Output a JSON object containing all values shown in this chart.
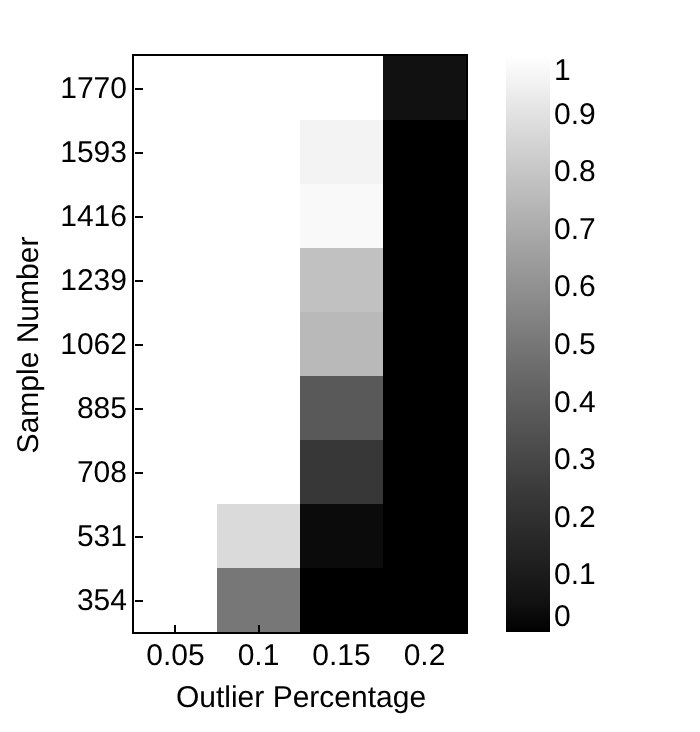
{
  "chart_data": {
    "type": "heatmap",
    "xlabel": "Outlier Percentage",
    "ylabel": "Sample Number",
    "categories": [
      "0.05",
      "0.1",
      "0.15",
      "0.2"
    ],
    "y_categories": [
      "1770",
      "1593",
      "1416",
      "1239",
      "1062",
      "885",
      "708",
      "531",
      "354"
    ],
    "cells": [
      [
        1,
        1,
        1,
        0.05
      ],
      [
        1,
        1,
        0.96,
        0
      ],
      [
        1,
        1,
        0.98,
        0
      ],
      [
        1,
        1,
        0.78,
        0
      ],
      [
        1,
        1,
        0.75,
        0
      ],
      [
        1,
        1,
        0.38,
        0
      ],
      [
        1,
        1,
        0.23,
        0
      ],
      [
        1,
        0.87,
        0.03,
        0
      ],
      [
        1,
        0.5,
        0,
        0
      ]
    ],
    "clim": [
      0,
      1
    ],
    "cticks": [
      0,
      0.1,
      0.2,
      0.3,
      0.4,
      0.5,
      0.6,
      0.7,
      0.8,
      0.9,
      1
    ]
  }
}
